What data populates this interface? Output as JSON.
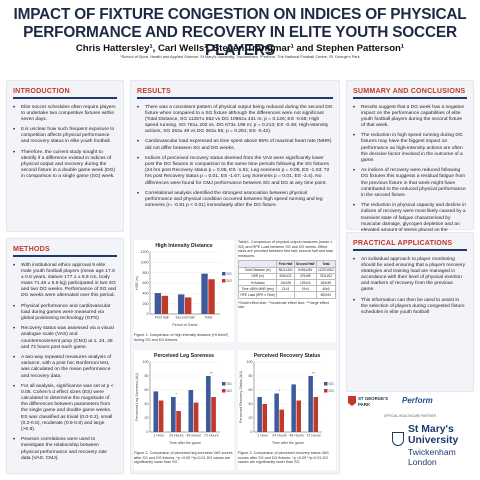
{
  "title": "IMPACT OF FIXTURE CONGESTION ON INDICES OF PHYSICAL PERFORMANCE AND RECOVERY IN ELITE YOUTH SOCCER PLAYERS",
  "authors": "Chris Hattersley¹, Carl Wells², Steven Trangmar¹ and Stephen Patterson¹",
  "affiliation": "¹School of Sport, Health and Applied Science, St Mary's University, Twickenham. ²Perform, The National Football Centre, St. George's Park",
  "intro": {
    "heading": "INTRODUCTION",
    "bullets": [
      "Elite soccer schedules often require players to undertake two competitive fixtures within seven days.",
      "It is unclear how such frequent exposure to competition affects physical performance and recovery status in elite youth football.",
      "Therefore, the current study sought to identify if a difference existed in indices of physical output and recovery during the second fixture in a double game week (DG) in comparison to a single game (SG) week."
    ]
  },
  "methods": {
    "heading": "METHODS",
    "bullets": [
      "With institutional ethics approval 9 elite male youth football players (mean age 17.6 ± 0.6 years, stature 177.1 ± 6.9 cm, body mass 71.48 ± 6.9 kg) participated in two SG and two DG weeks. Performance of SG and DG weeks were alternated over this period.",
      "Physical performance and cardiovascular load during games were measured via global positioning technology (GPS)",
      "Recovery status was assessed via a visual analogue scale (VAS) and countermovement jump (CMJ) at 1, 24, 48 and 72 hours post each game.",
      "A two-way repeated measures analysis of variance, with a post hoc Bonferroni test, was calculated on the mean performance and recovery data.",
      "For all analysis, significance was set at p < 0.05. Cohen's d effect sizes (ES) were calculated to determine the magnitude of the differences between parameters from the single game and double game weeks. ES was classified as trivial (0.0-0.2), small (0.2-0.5), moderate (0.5-0.8) and large (>0.8).",
      "Pearson correlations were used to investigate the relationship between physical performance and recovery rate data (VAS, CMJ)."
    ]
  },
  "results": {
    "heading": "RESULTS",
    "bullets": [
      "There was a consistent pattern of physical output being reduced during the second DG fixture when compared to a SG fixture although the differences were not significant (Total Distance, SG 11257± 552 vs DG 10962± 431 m; p = 0.126; ES -0.55; High speed running, SG 781± 202 vs. DG 673± 196 m; p = 0.213; ES -0.48; High-intensity actions, SG 263± 49 vs DG 263± 55; p = 0.291; ES -0.42).",
      "Cardiovascular load expressed as time spent above 85% of maximal heart rate (MHR) did not differ between SG and DG weeks.",
      "Indices of perceived recovery status deemed from the VAS were significantly lower post the DG fixtures in comparison to the same time periods following the SG fixtures (24 hrs post Recovery status p = 0.05, ES -1.51; Leg soreness p = 0.05, ES -1.03; 72 hrs post Recovery status p = 0.01, ES -1.67; Leg Soreness p = 0.01, ES -2.4). No differences were found for CMJ performance between SG and DG at any time point.",
      "Correlational analysis identified the strongest association between physical performance and physical condition occurred between high speed running and leg soreness (r= -0.81 p < 0.01) immediately after the DG fixture."
    ],
    "fig1_caption": "Figure 1. Comparison of high intensity distance (HI.6m/s²) during SG and DG fixtures.",
    "table_caption": "Table1. Comparison of physical output measures (mean ± SD) and RPE Load between SG and DG weeks. Effect sizes are provided between first half, second half and total measures.",
    "table_note": "*Small effect size; **moderate effect size; ***large effect size",
    "fig2_caption": "Figure 2. Comparison of perceived leg soreness VAS scores after SG and DG fixtures. *p <0.05 **p<0.01 DG values are significantly lower than SG.",
    "fig3_caption": "Figure 3. Comparison of perceived recovery status VAS scores after SG and DG fixtures. *p <0.05 **p<0.01 DG values are significantly lower than SG."
  },
  "table": {
    "headers": [
      "",
      "First Half",
      "Second Half",
      "Total"
    ],
    "rows": [
      [
        "Total Distance (m)",
        "5611±304",
        "5494±281",
        "11257±552"
      ],
      [
        "HSR (m)",
        "405±121",
        "379±98",
        "781±202"
      ],
      [
        "Hi Actions",
        "134±28",
        "129±24",
        "263±49"
      ],
      [
        "Time >85% MHR (min)",
        "21±3",
        "19±4",
        "40±6"
      ],
      [
        "RPE Load (RPE x Time)",
        "",
        "",
        "892±91"
      ]
    ]
  },
  "chart_data": [
    {
      "type": "bar",
      "title": "High Intensity Distance",
      "xlabel": "Period of Game",
      "ylabel": "HSR (m)",
      "categories": [
        "First half",
        "Second half",
        "Total"
      ],
      "ylim": [
        0,
        1200
      ],
      "yticks": [
        0,
        200,
        400,
        600,
        800,
        1000,
        1200
      ],
      "series": [
        {
          "name": "SG",
          "values": [
            405,
            379,
            781
          ]
        },
        {
          "name": "DG",
          "values": [
            352,
            321,
            673
          ]
        }
      ],
      "legend": "right"
    },
    {
      "type": "bar",
      "title": "Perceived Leg Soreness",
      "xlabel": "Time after the game",
      "ylabel": "Perceived Leg Soreness (AU)",
      "categories": [
        "1 Hour",
        "24 Hours",
        "48 Hours",
        "72 Hours"
      ],
      "ylim": [
        0,
        100
      ],
      "yticks": [
        0,
        20,
        40,
        60,
        80,
        100
      ],
      "series": [
        {
          "name": "SG",
          "values": [
            58,
            50,
            60,
            80
          ]
        },
        {
          "name": "DG",
          "values": [
            45,
            30,
            42,
            50
          ]
        }
      ],
      "annotations": [
        "",
        "*",
        "",
        "**"
      ],
      "legend": "right"
    },
    {
      "type": "bar",
      "title": "Perceived Recovery Status",
      "xlabel": "Time after the game",
      "ylabel": "Perceived Recovery Status (AU)",
      "categories": [
        "1 Hour",
        "24 Hours",
        "48 Hours",
        "72 Hours"
      ],
      "ylim": [
        0,
        100
      ],
      "yticks": [
        0,
        20,
        40,
        60,
        80,
        100
      ],
      "series": [
        {
          "name": "SG",
          "values": [
            50,
            55,
            68,
            80
          ]
        },
        {
          "name": "DG",
          "values": [
            40,
            32,
            45,
            50
          ]
        }
      ],
      "annotations": [
        "",
        "*",
        "",
        "**"
      ],
      "legend": "right"
    }
  ],
  "summary": {
    "heading": "SUMMARY AND CONCLUSIONS",
    "bullets": [
      "Results suggest that a DG week has a negative impact on the performance capabilities of elite youth football players during the second fixture of that week.",
      "The reduction in high speed running during DG fixtures may have the biggest impact on performance as high-intensity actions are often the decisive factor involved in the outcome of a game.",
      "As indices of recovery were reduced following DG fixtures this suggests a residual fatigue from the previous fixture in that week might have contributed to the reduced physical performance in the second fixture.",
      "The reduction in physical capacity and decline in indices of recovery were most likely caused by a transient state of fatigue characterised by muscular damage, glycogen depletion and an elevated amount of stress placed on the cardiovascular, endocrine, and nervous systems.",
      "This reduction in performance capability, and the accentuated level of post-game fatigue suggests that DG fixtures may be more physically demanding than SG fixtures for youth soccer players."
    ]
  },
  "practical": {
    "heading": "PRACTICAL APPLICATIONS",
    "bullets": [
      "An individual approach to player monitoring should be used ensuring that a players recovery strategies and training load are managed in accordance with their level of physical exertion and markers of recovery from the previous game.",
      "This information can then be used to assist in the selection of players during congested fixture schedules in elite youth football"
    ]
  },
  "logos": {
    "st_georges_line1": "ST GEORGE'S",
    "st_georges_line2": "PARK",
    "perform": "Perform",
    "partners": "OFFICIAL HEALTHCARE PARTNER",
    "uni_line1": "St Mary's",
    "uni_line2": "University",
    "uni_line3": "Twickenham",
    "uni_line4": "London"
  },
  "colors": {
    "sg": "#3d5a9c",
    "dg": "#c0392b",
    "heading": "#c0392b",
    "title": "#1e2a44"
  }
}
